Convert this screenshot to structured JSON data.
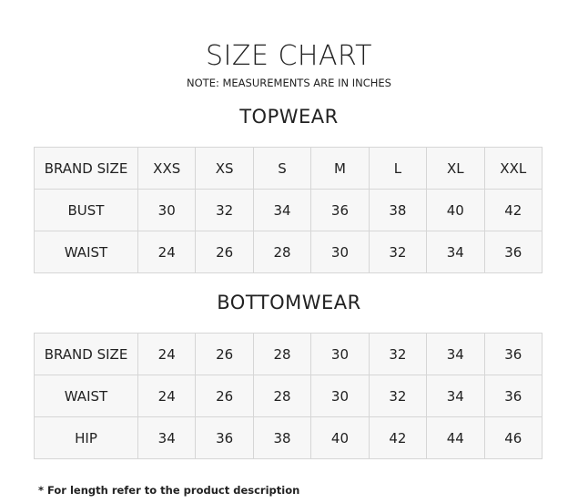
{
  "title": "SIZE CHART",
  "note": "NOTE: MEASUREMENTS ARE IN INCHES",
  "topwear": {
    "heading": "TOPWEAR",
    "rows": [
      [
        "BRAND SIZE",
        "XXS",
        "XS",
        "S",
        "M",
        "L",
        "XL",
        "XXL"
      ],
      [
        "BUST",
        "30",
        "32",
        "34",
        "36",
        "38",
        "40",
        "42"
      ],
      [
        "WAIST",
        "24",
        "26",
        "28",
        "30",
        "32",
        "34",
        "36"
      ]
    ]
  },
  "bottomwear": {
    "heading": "BOTTOMWEAR",
    "rows": [
      [
        "BRAND SIZE",
        "24",
        "26",
        "28",
        "30",
        "32",
        "34",
        "36"
      ],
      [
        "WAIST",
        "24",
        "26",
        "28",
        "30",
        "32",
        "34",
        "36"
      ],
      [
        "HIP",
        "34",
        "36",
        "38",
        "40",
        "42",
        "44",
        "46"
      ]
    ]
  },
  "footnote": "* For length refer to the product description"
}
